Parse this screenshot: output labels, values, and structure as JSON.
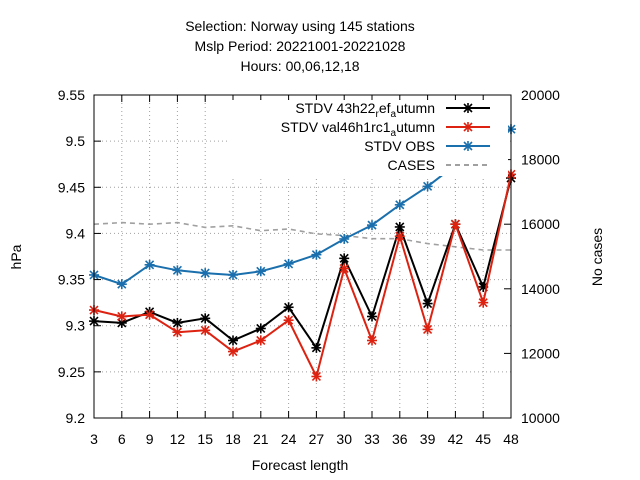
{
  "chart_data": {
    "type": "line",
    "title_lines": [
      "Selection: Norway using   145 stations",
      "Mslp   Period: 20221001-20221028",
      "Hours:  00,06,12,18"
    ],
    "xlabel": "Forecast length",
    "ylabel": "hPa",
    "y2label": "No cases",
    "x": [
      3,
      6,
      9,
      12,
      15,
      18,
      21,
      24,
      27,
      30,
      33,
      36,
      39,
      42,
      45,
      48
    ],
    "xlim": [
      3,
      48
    ],
    "ylim": [
      9.2,
      9.55
    ],
    "y2lim": [
      10000,
      20000
    ],
    "yticks": [
      "9.2",
      "9.25",
      "9.3",
      "9.35",
      "9.4",
      "9.45",
      "9.5",
      "9.55"
    ],
    "y2ticks": [
      "10000",
      "12000",
      "14000",
      "16000",
      "18000",
      "20000"
    ],
    "grid": true,
    "legend_position": "top-right",
    "series": [
      {
        "name": "STDV 43h22_ref_autumn",
        "legend_text": {
          "a": "STDV 43h22",
          "b": "r",
          "c": "ef",
          "d": "a",
          "e": "utumn"
        },
        "axis": "y",
        "color": "#000000",
        "marker": "x-star",
        "dashed": false,
        "values": [
          9.305,
          9.303,
          9.315,
          9.303,
          9.308,
          9.284,
          9.297,
          9.32,
          9.276,
          9.373,
          9.31,
          9.407,
          9.324,
          9.41,
          9.342,
          9.46
        ]
      },
      {
        "name": "STDV val46h1rc1_autumn",
        "legend_text": {
          "a": "STDV val46h1rc1",
          "b": "a",
          "c": "utumn"
        },
        "axis": "y",
        "color": "#dd2211",
        "marker": "x-star",
        "dashed": false,
        "values": [
          9.317,
          9.31,
          9.312,
          9.293,
          9.295,
          9.272,
          9.284,
          9.306,
          9.245,
          9.362,
          9.284,
          9.397,
          9.296,
          9.41,
          9.325,
          9.464
        ]
      },
      {
        "name": "STDV OBS",
        "axis": "y",
        "color": "#1a6fad",
        "marker": "x-star",
        "dashed": false,
        "values": [
          9.355,
          9.345,
          9.366,
          9.36,
          9.357,
          9.355,
          9.359,
          9.367,
          9.377,
          9.394,
          9.409,
          9.431,
          9.451,
          9.474,
          9.494,
          9.513
        ]
      },
      {
        "name": "CASES",
        "axis": "y2",
        "color": "#a0a0a0",
        "marker": "none",
        "dashed": true,
        "values": [
          16000,
          16050,
          16000,
          16050,
          15900,
          15950,
          15800,
          15850,
          15700,
          15650,
          15550,
          15550,
          15400,
          15300,
          15200,
          15200
        ]
      }
    ]
  }
}
